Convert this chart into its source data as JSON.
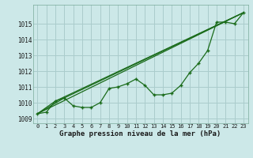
{
  "bg_color": "#cce8e8",
  "grid_color": "#aacccc",
  "line_color": "#1a6b1a",
  "marker_color": "#1a6b1a",
  "xlabel": "Graphe pression niveau de la mer (hPa)",
  "xlim": [
    -0.5,
    23.5
  ],
  "ylim": [
    1008.7,
    1016.2
  ],
  "yticks": [
    1009,
    1010,
    1011,
    1012,
    1013,
    1014,
    1015
  ],
  "xticks": [
    0,
    1,
    2,
    3,
    4,
    5,
    6,
    7,
    8,
    9,
    10,
    11,
    12,
    13,
    14,
    15,
    16,
    17,
    18,
    19,
    20,
    21,
    22,
    23
  ],
  "series1_x": [
    0,
    1,
    2,
    3,
    4,
    5,
    6,
    7,
    8,
    9,
    10,
    11,
    12,
    13,
    14,
    15,
    16,
    17,
    18,
    19,
    20,
    21,
    22,
    23
  ],
  "series1_y": [
    1009.3,
    1009.4,
    1010.1,
    1010.3,
    1009.8,
    1009.7,
    1009.7,
    1010.0,
    1010.9,
    1011.0,
    1011.2,
    1011.5,
    1011.1,
    1010.5,
    1010.5,
    1010.6,
    1011.1,
    1011.9,
    1012.5,
    1013.3,
    1015.1,
    1015.1,
    1015.0,
    1015.7
  ],
  "series2_x": [
    0,
    23
  ],
  "series2_y": [
    1009.3,
    1015.7
  ],
  "series3_x": [
    0,
    2,
    23
  ],
  "series3_y": [
    1009.3,
    1010.1,
    1015.7
  ],
  "series4_x": [
    0,
    3,
    23
  ],
  "series4_y": [
    1009.3,
    1010.3,
    1015.7
  ]
}
